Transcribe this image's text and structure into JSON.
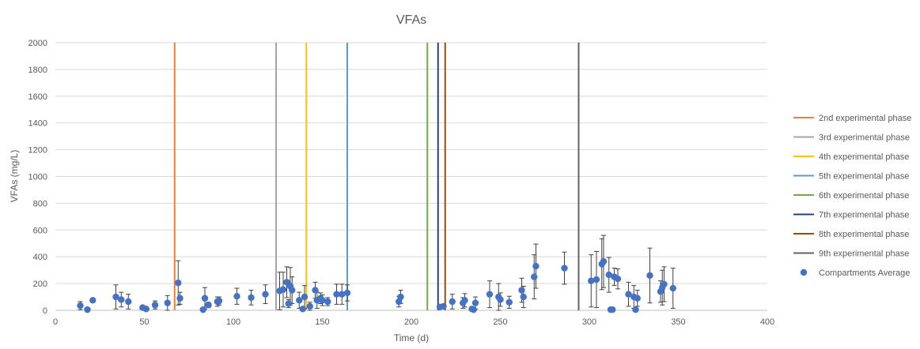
{
  "chart_data": {
    "type": "scatter",
    "title": "VFAs",
    "xlabel": "Time (d)",
    "ylabel": "VFAs (mg/L)",
    "xlim": [
      0,
      400
    ],
    "ylim": [
      0,
      2000
    ],
    "x_ticks": [
      0,
      50,
      100,
      150,
      200,
      250,
      300,
      350,
      400
    ],
    "y_ticks": [
      0,
      200,
      400,
      600,
      800,
      1000,
      1200,
      1400,
      1600,
      1800,
      2000
    ],
    "grid": "horizontal",
    "legend_position": "right",
    "phase_lines": [
      {
        "name": "2nd experimental phase",
        "x": 67,
        "color": "#ED7D31"
      },
      {
        "name": "3rd experimental phase",
        "x": 124,
        "color": "#A5A5A5"
      },
      {
        "name": "4th experimental phase",
        "x": 141,
        "color": "#FFC000"
      },
      {
        "name": "5th experimental phase",
        "x": 164,
        "color": "#5B9BD5"
      },
      {
        "name": "6th experimental phase",
        "x": 209,
        "color": "#70AD47"
      },
      {
        "name": "7th experimental phase",
        "x": 215,
        "color": "#264478"
      },
      {
        "name": "8th experimental phase",
        "x": 219,
        "color": "#9E480E"
      },
      {
        "name": "9th experimental phase",
        "x": 294,
        "color": "#636363"
      }
    ],
    "series": [
      {
        "name": "Compartments Average",
        "color": "#4472C4",
        "points": [
          {
            "x": 14,
            "y": 35,
            "err": 30
          },
          {
            "x": 18,
            "y": 5,
            "err": 0
          },
          {
            "x": 21,
            "y": 75,
            "err": 0
          },
          {
            "x": 34,
            "y": 100,
            "err": 90
          },
          {
            "x": 37,
            "y": 80,
            "err": 55
          },
          {
            "x": 41,
            "y": 65,
            "err": 55
          },
          {
            "x": 49,
            "y": 20,
            "err": 0
          },
          {
            "x": 51,
            "y": 10,
            "err": 0
          },
          {
            "x": 56,
            "y": 40,
            "err": 30
          },
          {
            "x": 63,
            "y": 55,
            "err": 55
          },
          {
            "x": 69,
            "y": 205,
            "err": 165
          },
          {
            "x": 70,
            "y": 90,
            "err": 45
          },
          {
            "x": 83,
            "y": 5,
            "err": 0
          },
          {
            "x": 84,
            "y": 90,
            "err": 80
          },
          {
            "x": 86,
            "y": 40,
            "err": 20
          },
          {
            "x": 91,
            "y": 65,
            "err": 35
          },
          {
            "x": 92,
            "y": 70,
            "err": 30
          },
          {
            "x": 102,
            "y": 105,
            "err": 60
          },
          {
            "x": 110,
            "y": 95,
            "err": 55
          },
          {
            "x": 118,
            "y": 120,
            "err": 70
          },
          {
            "x": 126,
            "y": 145,
            "err": 140
          },
          {
            "x": 128,
            "y": 155,
            "err": 130
          },
          {
            "x": 130,
            "y": 210,
            "err": 115
          },
          {
            "x": 131,
            "y": 50,
            "err": 30
          },
          {
            "x": 132,
            "y": 180,
            "err": 140
          },
          {
            "x": 133,
            "y": 150,
            "err": 100
          },
          {
            "x": 137,
            "y": 75,
            "err": 60
          },
          {
            "x": 139,
            "y": 10,
            "err": 0
          },
          {
            "x": 140,
            "y": 100,
            "err": 85
          },
          {
            "x": 143,
            "y": 30,
            "err": 30
          },
          {
            "x": 146,
            "y": 150,
            "err": 60
          },
          {
            "x": 147,
            "y": 75,
            "err": 60
          },
          {
            "x": 149,
            "y": 90,
            "err": 40
          },
          {
            "x": 150,
            "y": 75,
            "err": 40
          },
          {
            "x": 153,
            "y": 65,
            "err": 30
          },
          {
            "x": 158,
            "y": 120,
            "err": 75
          },
          {
            "x": 161,
            "y": 120,
            "err": 75
          },
          {
            "x": 164,
            "y": 130,
            "err": 60
          },
          {
            "x": 193,
            "y": 65,
            "err": 40
          },
          {
            "x": 194,
            "y": 100,
            "err": 50
          },
          {
            "x": 216,
            "y": 25,
            "err": 15
          },
          {
            "x": 218,
            "y": 30,
            "err": 10
          },
          {
            "x": 223,
            "y": 65,
            "err": 55
          },
          {
            "x": 229,
            "y": 55,
            "err": 40
          },
          {
            "x": 230,
            "y": 75,
            "err": 50
          },
          {
            "x": 234,
            "y": 10,
            "err": 0
          },
          {
            "x": 235,
            "y": 5,
            "err": 0
          },
          {
            "x": 236,
            "y": 55,
            "err": 45
          },
          {
            "x": 244,
            "y": 120,
            "err": 100
          },
          {
            "x": 249,
            "y": 100,
            "err": 100
          },
          {
            "x": 250,
            "y": 80,
            "err": 50
          },
          {
            "x": 255,
            "y": 60,
            "err": 45
          },
          {
            "x": 262,
            "y": 150,
            "err": 90
          },
          {
            "x": 263,
            "y": 100,
            "err": 80
          },
          {
            "x": 269,
            "y": 250,
            "err": 165
          },
          {
            "x": 270,
            "y": 330,
            "err": 165
          },
          {
            "x": 286,
            "y": 315,
            "err": 120
          },
          {
            "x": 301,
            "y": 220,
            "err": 195
          },
          {
            "x": 304,
            "y": 230,
            "err": 210
          },
          {
            "x": 307,
            "y": 345,
            "err": 190
          },
          {
            "x": 308,
            "y": 365,
            "err": 195
          },
          {
            "x": 311,
            "y": 265,
            "err": 130
          },
          {
            "x": 312,
            "y": 5,
            "err": 0
          },
          {
            "x": 313,
            "y": 5,
            "err": 0
          },
          {
            "x": 314,
            "y": 250,
            "err": 65
          },
          {
            "x": 316,
            "y": 235,
            "err": 75
          },
          {
            "x": 322,
            "y": 120,
            "err": 90
          },
          {
            "x": 325,
            "y": 100,
            "err": 85
          },
          {
            "x": 326,
            "y": 5,
            "err": 0
          },
          {
            "x": 327,
            "y": 90,
            "err": 60
          },
          {
            "x": 334,
            "y": 260,
            "err": 205
          },
          {
            "x": 340,
            "y": 140,
            "err": 80
          },
          {
            "x": 341,
            "y": 170,
            "err": 130
          },
          {
            "x": 342,
            "y": 195,
            "err": 130
          },
          {
            "x": 347,
            "y": 165,
            "err": 150
          }
        ]
      }
    ]
  }
}
